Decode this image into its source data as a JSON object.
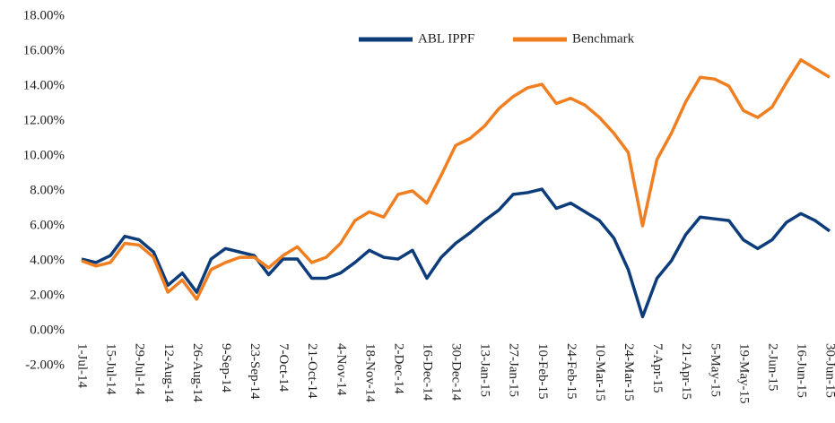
{
  "chart_data": {
    "type": "line",
    "categories": [
      "1-Jul-14",
      null,
      "15-Jul-14",
      null,
      "29-Jul-14",
      null,
      "12-Aug-14",
      null,
      "26-Aug-14",
      null,
      "9-Sep-14",
      null,
      "23-Sep-14",
      null,
      "7-Oct-14",
      null,
      "21-Oct-14",
      null,
      "4-Nov-14",
      null,
      "18-Nov-14",
      null,
      "2-Dec-14",
      null,
      "16-Dec-14",
      null,
      "30-Dec-14",
      null,
      "13-Jan-15",
      null,
      "27-Jan-15",
      null,
      "10-Feb-15",
      null,
      "24-Feb-15",
      null,
      "10-Mar-15",
      null,
      "24-Mar-15",
      null,
      "7-Apr-15",
      null,
      "21-Apr-15",
      null,
      "5-May-15",
      null,
      "19-May-15",
      null,
      "2-Jun-15",
      null,
      "16-Jun-15",
      null,
      "30-Jun-15"
    ],
    "series": [
      {
        "name": "ABL IPPF",
        "color": "#0d3c7a",
        "values": [
          4.1,
          3.9,
          4.3,
          5.4,
          5.2,
          4.5,
          2.6,
          3.3,
          2.2,
          4.1,
          4.7,
          4.5,
          4.3,
          3.2,
          4.1,
          4.1,
          3.0,
          3.0,
          3.3,
          3.9,
          4.6,
          4.2,
          4.1,
          4.6,
          3.0,
          4.2,
          5.0,
          5.6,
          6.3,
          6.9,
          7.8,
          7.9,
          8.1,
          7.0,
          7.3,
          6.8,
          6.3,
          5.3,
          3.5,
          0.8,
          3.0,
          4.0,
          5.5,
          6.5,
          6.4,
          6.3,
          5.2,
          4.7,
          5.2,
          6.2,
          6.7,
          6.3,
          5.7
        ]
      },
      {
        "name": "Benchmark",
        "color": "#f07f22",
        "values": [
          4.0,
          3.7,
          3.9,
          5.0,
          4.9,
          4.2,
          2.2,
          2.9,
          1.8,
          3.5,
          3.9,
          4.2,
          4.2,
          3.6,
          4.3,
          4.8,
          3.9,
          4.2,
          5.0,
          6.3,
          6.8,
          6.5,
          7.8,
          8.0,
          7.3,
          8.9,
          10.6,
          11.0,
          11.7,
          12.7,
          13.4,
          13.9,
          14.1,
          13.0,
          13.3,
          12.9,
          12.2,
          11.3,
          10.2,
          6.0,
          9.8,
          11.3,
          13.1,
          14.5,
          14.4,
          14.0,
          12.6,
          12.2,
          12.8,
          14.2,
          15.5,
          15.0,
          14.5
        ]
      }
    ],
    "ylim": [
      -2,
      18
    ],
    "yticks": [
      {
        "value": -2,
        "label": "-2.00%"
      },
      {
        "value": 0,
        "label": "0.00%"
      },
      {
        "value": 2,
        "label": "2.00%"
      },
      {
        "value": 4,
        "label": "4.00%"
      },
      {
        "value": 6,
        "label": "6.00%"
      },
      {
        "value": 8,
        "label": "8.00%"
      },
      {
        "value": 10,
        "label": "10.00%"
      },
      {
        "value": 12,
        "label": "12.00%"
      },
      {
        "value": 14,
        "label": "14.00%"
      },
      {
        "value": 16,
        "label": "16.00%"
      },
      {
        "value": 18,
        "label": "18.00%"
      }
    ],
    "legend": "top"
  }
}
